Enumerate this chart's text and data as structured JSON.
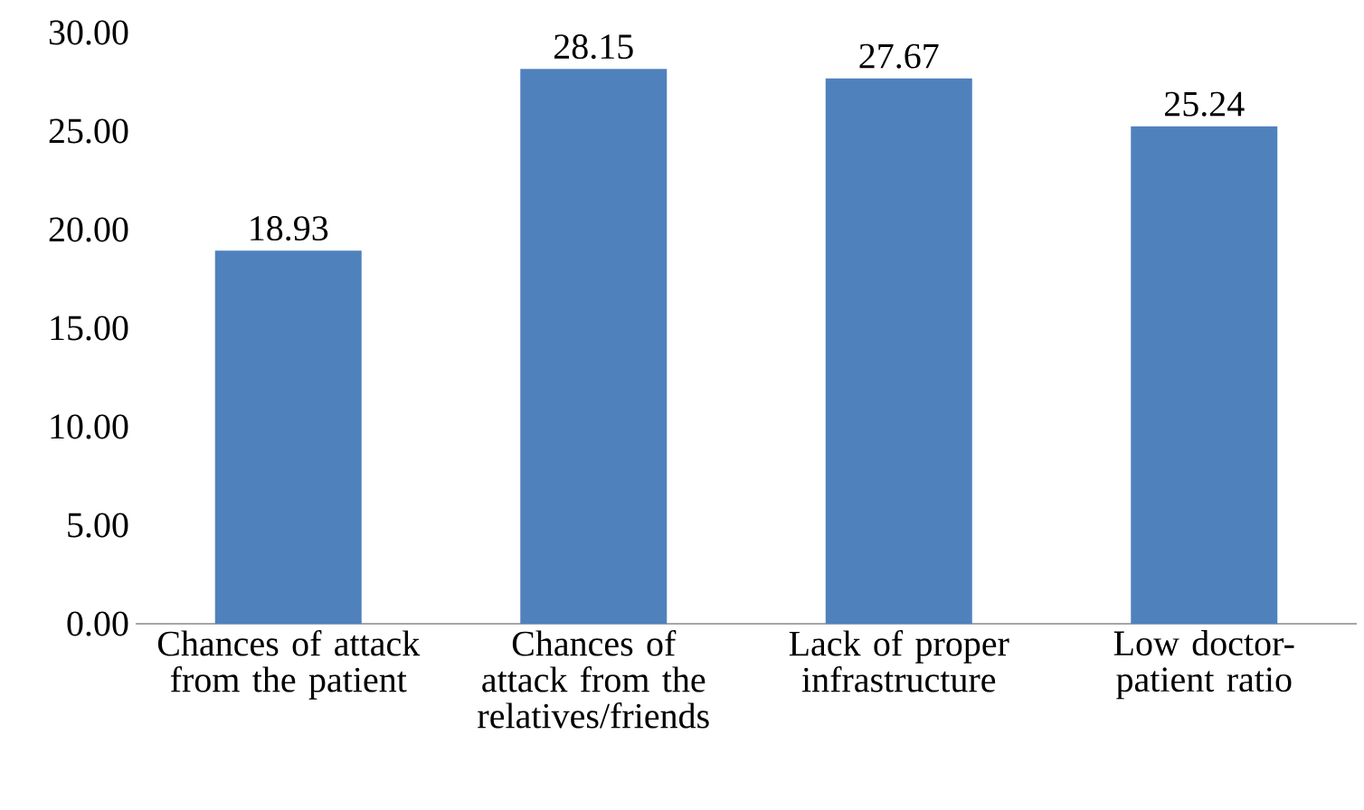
{
  "chart_data": {
    "type": "bar",
    "categories": [
      "Chances of attack from the patient",
      "Chances of attack from the relatives/friends",
      "Lack of proper infrastructure",
      "Low doctor-patient ratio"
    ],
    "values": [
      18.93,
      28.15,
      27.67,
      25.24
    ],
    "color": "#4f81bd",
    "data_labels": true,
    "ylim": [
      0,
      30
    ],
    "yticks": [
      {
        "value": 0,
        "label": "0.00"
      },
      {
        "value": 5,
        "label": "5.00"
      },
      {
        "value": 10,
        "label": "10.00"
      },
      {
        "value": 15,
        "label": "15.00"
      },
      {
        "value": 20,
        "label": "20.00"
      },
      {
        "value": 25,
        "label": "25.00"
      },
      {
        "value": 30,
        "label": "30.00"
      }
    ],
    "grid": false
  }
}
